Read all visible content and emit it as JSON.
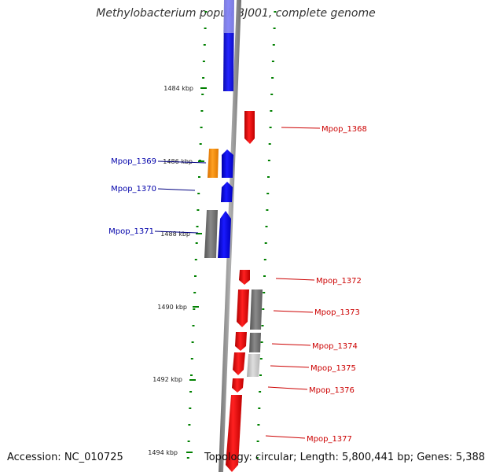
{
  "title": "Methylobacterium populi BJ001, complete genome",
  "accession": "Accession: NC_010725",
  "topology": "Topology: circular; Length: 5,800,441 bp; Genes: 5,388",
  "colors": {
    "forward": "#ff0000",
    "reverse": "#0000ff",
    "other": "#ff8c00",
    "grey": "#777777",
    "light_grey": "#c8c8c8",
    "axis_tick": "#008000",
    "backbone": "#8c8c8c"
  },
  "scale_labels": [
    {
      "text": "1484 kbp",
      "kbp": 1484
    },
    {
      "text": "1486 kbp",
      "kbp": 1486
    },
    {
      "text": "1488 kbp",
      "kbp": 1488
    },
    {
      "text": "1490 kbp",
      "kbp": 1490
    },
    {
      "text": "1492 kbp",
      "kbp": 1492
    },
    {
      "text": "1494 kbp",
      "kbp": 1494
    }
  ],
  "genes_reverse": [
    {
      "label": "Mpop_1369"
    },
    {
      "label": "Mpop_1370"
    },
    {
      "label": "Mpop_1371"
    }
  ],
  "genes_forward": [
    {
      "label": "Mpop_1368"
    },
    {
      "label": "Mpop_1372"
    },
    {
      "label": "Mpop_1373"
    },
    {
      "label": "Mpop_1374"
    },
    {
      "label": "Mpop_1375"
    },
    {
      "label": "Mpop_1376"
    },
    {
      "label": "Mpop_1377"
    }
  ]
}
